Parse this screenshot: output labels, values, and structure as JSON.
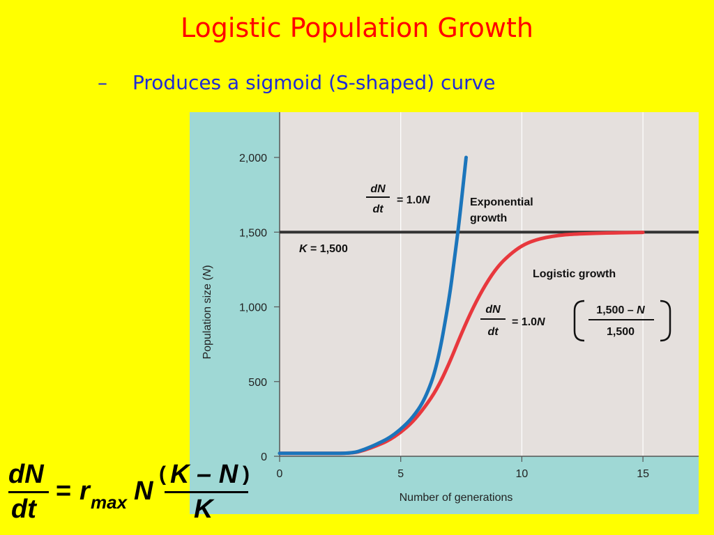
{
  "slide": {
    "title": "Logistic Population Growth",
    "bullet_dash": "–",
    "bullet_text": "Produces a sigmoid (S-shaped) curve",
    "title_color": "#ff0000",
    "bullet_color": "#1f2bd6",
    "background": "#ffff00"
  },
  "chart_data": {
    "type": "line",
    "xlabel": "Number of generations",
    "ylabel_prefix": "Population size (",
    "ylabel_var": "N",
    "ylabel_suffix": ")",
    "xlim": [
      0,
      17.3
    ],
    "ylim": [
      0,
      2000
    ],
    "x_ticks": [
      0,
      5,
      10,
      15
    ],
    "x_tick_labels": [
      "0",
      "5",
      "10",
      "15"
    ],
    "y_ticks": [
      0,
      500,
      1000,
      1500,
      2000
    ],
    "y_tick_labels": [
      "0",
      "500",
      "1,000",
      "1,500",
      "2,000"
    ],
    "grid": "vertical",
    "series": [
      {
        "name": "Exponential growth",
        "color": "#1b75bb",
        "x": [
          0,
          1,
          2,
          3,
          3.5,
          4,
          4.5,
          5,
          5.5,
          6,
          6.5,
          7,
          7.2,
          7.4,
          7.6,
          7.7
        ],
        "y": [
          20,
          20,
          20,
          20,
          45,
          80,
          120,
          180,
          260,
          380,
          600,
          1050,
          1300,
          1550,
          1850,
          2000
        ]
      },
      {
        "name": "Logistic growth",
        "color": "#e8383d",
        "x": [
          0,
          1,
          2,
          3,
          3.5,
          4,
          4.5,
          5,
          5.5,
          6,
          6.5,
          7,
          7.5,
          8,
          8.5,
          9,
          9.5,
          10,
          10.5,
          11,
          11.5,
          12,
          13,
          14,
          15
        ],
        "y": [
          20,
          20,
          20,
          20,
          40,
          70,
          105,
          160,
          230,
          330,
          450,
          620,
          820,
          1000,
          1150,
          1270,
          1350,
          1410,
          1445,
          1465,
          1478,
          1486,
          1492,
          1496,
          1498
        ]
      }
    ],
    "carrying_capacity": {
      "value": 1500,
      "label_var": "K",
      "label_rest": " = 1,500"
    },
    "annotations": {
      "exp_label_line1": "Exponential",
      "exp_label_line2": "growth",
      "exp_eq_num": "dN",
      "exp_eq_den": "dt",
      "exp_eq_rhs": "= 1.0",
      "exp_eq_var": "N",
      "log_label": "Logistic growth",
      "log_eq_num": "dN",
      "log_eq_den": "dt",
      "log_eq_rhs": "= 1.0",
      "log_eq_var": "N",
      "log_frac_num_a": "1,500 – ",
      "log_frac_num_var": "N",
      "log_frac_den": "1,500"
    },
    "colors": {
      "plot_bg": "#e5e0dd",
      "frame_bg": "#9fd8d5",
      "k_line": "#333333"
    }
  },
  "formula": {
    "lhs_num": "dN",
    "lhs_den": "dt",
    "equals": "=",
    "r": "r",
    "r_sub": "max",
    "n": "N",
    "paren_open": "(",
    "k_minus_n": "K – N",
    "paren_close": ")",
    "den": "K"
  }
}
